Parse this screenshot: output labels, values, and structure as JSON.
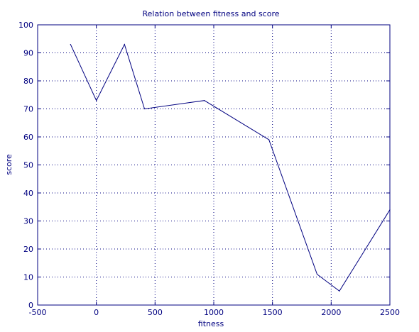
{
  "chart_data": {
    "type": "line",
    "title": "Relation between fitness and score",
    "xlabel": "fitness",
    "ylabel": "score",
    "xlim": [
      -500,
      2500
    ],
    "ylim": [
      0,
      100
    ],
    "xticks": [
      -500,
      0,
      500,
      1000,
      1500,
      2000,
      2500
    ],
    "xtick_labels": [
      "-500",
      "0",
      "500",
      "1000",
      "1500",
      "2000",
      "2500"
    ],
    "yticks": [
      0,
      10,
      20,
      30,
      40,
      50,
      60,
      70,
      80,
      90,
      100
    ],
    "ytick_labels": [
      "0",
      "10",
      "20",
      "30",
      "40",
      "50",
      "60",
      "70",
      "80",
      "90",
      "100"
    ],
    "grid": true,
    "grid_style": "dotted",
    "series": [
      {
        "x": [
          -220,
          0,
          240,
          410,
          920,
          1470,
          1880,
          2070,
          2500
        ],
        "y": [
          93,
          73,
          93,
          70,
          73,
          59,
          11,
          5,
          34
        ]
      }
    ],
    "colors": {
      "axes": "#000080",
      "line": "#000080",
      "grid": "#000080"
    }
  }
}
